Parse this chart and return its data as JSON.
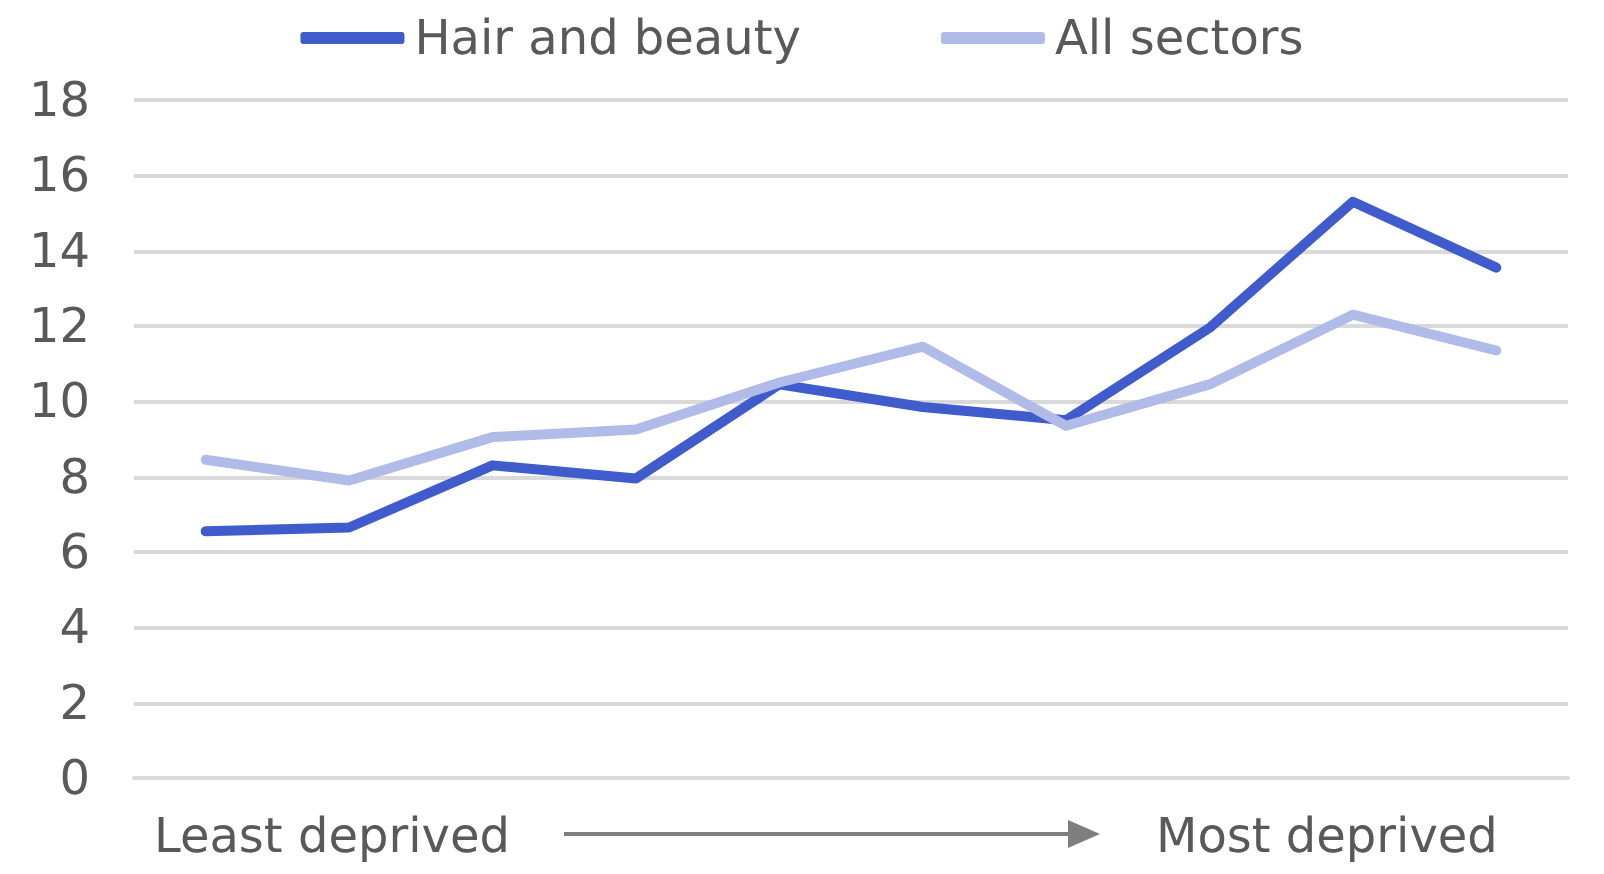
{
  "chart_data": {
    "type": "line",
    "categories": [
      null,
      null,
      null,
      null,
      null,
      null,
      null,
      null,
      null,
      null
    ],
    "series": [
      {
        "name": "Hair and beauty",
        "color": "#3f5bcc",
        "values": [
          6.55,
          6.65,
          8.3,
          7.95,
          10.45,
          9.85,
          9.5,
          11.95,
          15.3,
          13.55
        ]
      },
      {
        "name": "All sectors",
        "color": "#b1bbe8",
        "values": [
          8.45,
          7.9,
          9.05,
          9.25,
          10.5,
          11.45,
          9.35,
          10.45,
          12.3,
          11.35
        ]
      }
    ],
    "ylim": [
      0,
      18
    ],
    "yticks": [
      0,
      2,
      4,
      6,
      8,
      10,
      12,
      14,
      16,
      18
    ],
    "grid": "y",
    "legend": "top",
    "marker": "none",
    "annotations": [
      "Least deprived",
      "Most deprived"
    ]
  }
}
